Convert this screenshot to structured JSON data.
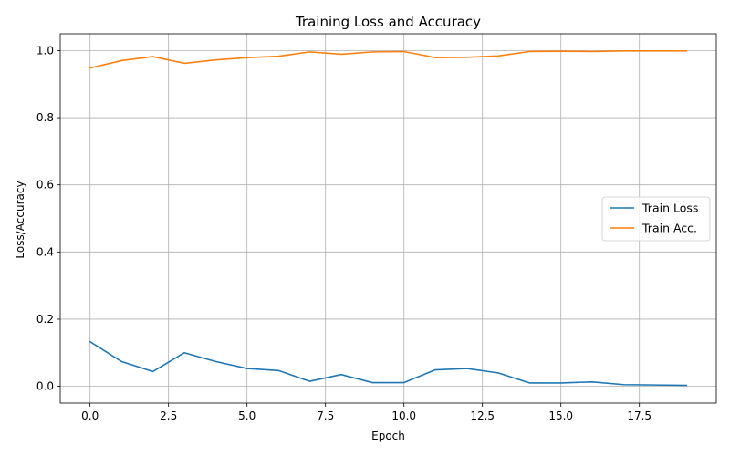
{
  "chart_data": {
    "type": "line",
    "title": "Training Loss and Accuracy",
    "xlabel": "Epoch",
    "ylabel": "Loss/Accuracy",
    "xlim": [
      -0.95,
      19.95
    ],
    "ylim": [
      -0.05,
      1.05
    ],
    "xticks": [
      0,
      2.5,
      5,
      7.5,
      10,
      12.5,
      15,
      17.5
    ],
    "xtick_labels": [
      "0.0",
      "2.5",
      "5.0",
      "7.5",
      "10.0",
      "12.5",
      "15.0",
      "17.5"
    ],
    "yticks": [
      0,
      0.2,
      0.4,
      0.6,
      0.8,
      1.0
    ],
    "ytick_labels": [
      "0.0",
      "0.2",
      "0.4",
      "0.6",
      "0.8",
      "1.0"
    ],
    "grid": true,
    "legend_position": "center-right",
    "x": [
      0,
      1,
      2,
      3,
      4,
      5,
      6,
      7,
      8,
      9,
      10,
      11,
      12,
      13,
      14,
      15,
      16,
      17,
      18,
      19
    ],
    "series": [
      {
        "name": "Train Loss",
        "color": "#1f77b4",
        "values": [
          0.133,
          0.074,
          0.044,
          0.1,
          0.074,
          0.053,
          0.047,
          0.015,
          0.035,
          0.011,
          0.011,
          0.049,
          0.053,
          0.04,
          0.01,
          0.01,
          0.013,
          0.005,
          0.004,
          0.003
        ]
      },
      {
        "name": "Train Acc.",
        "color": "#ff7f0e",
        "values": [
          0.948,
          0.97,
          0.982,
          0.962,
          0.972,
          0.979,
          0.983,
          0.996,
          0.989,
          0.996,
          0.997,
          0.979,
          0.98,
          0.984,
          0.997,
          0.998,
          0.997,
          0.999,
          0.999,
          0.999
        ]
      }
    ]
  }
}
